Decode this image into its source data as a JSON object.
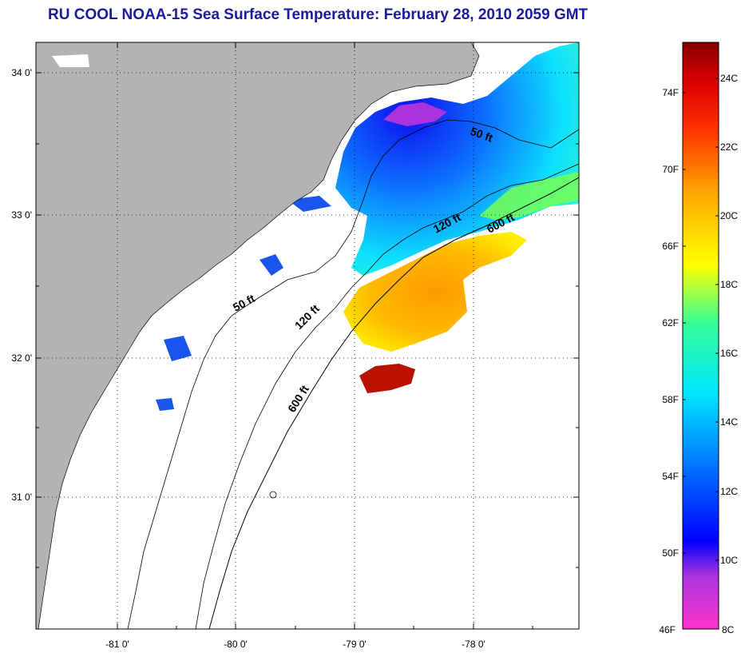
{
  "title": "RU COOL  NOAA-15  Sea Surface Temperature:  February 28, 2010 2059 GMT",
  "map": {
    "lon_ticks": [
      "-81 0'",
      "-80 0'",
      "-79 0'",
      "-78 0'"
    ],
    "lat_ticks": [
      "34 0'",
      "33 0'",
      "32 0'",
      "31 0'"
    ],
    "contour_labels": [
      "50 ft",
      "120 ft",
      "600 ft",
      "50 ft",
      "120 ft",
      "600 ft"
    ],
    "land_color": "#b3b3b3",
    "no_data_color": "#ffffff"
  },
  "colorbar": {
    "fahrenheit": [
      "74F",
      "70F",
      "66F",
      "62F",
      "58F",
      "54F",
      "50F",
      "46F"
    ],
    "celsius": [
      "24C",
      "22C",
      "20C",
      "18C",
      "16C",
      "14C",
      "12C",
      "10C",
      "8C"
    ],
    "range_c": [
      8,
      25
    ]
  }
}
